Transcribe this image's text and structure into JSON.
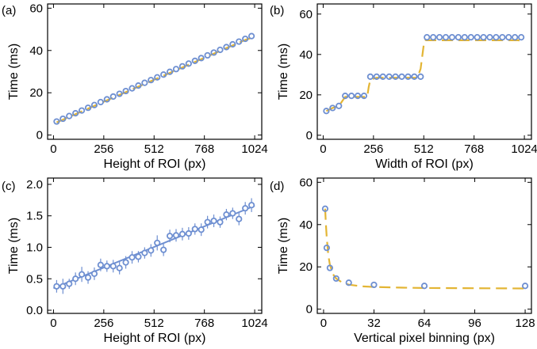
{
  "figure": {
    "background": "#ffffff"
  },
  "colors": {
    "measured": "#6e8fd1",
    "model": "#e3b534",
    "fit": "#6e8fd1"
  },
  "chart_data": [
    {
      "id": "a",
      "panel_label": "(a)",
      "type": "scatter",
      "xlabel": "Height of ROI (px)",
      "ylabel": "Time (ms)",
      "xlim": [
        -30,
        1060
      ],
      "ylim": [
        -2,
        62
      ],
      "xticks": [
        0,
        256,
        512,
        768,
        1024
      ],
      "yticks": [
        0,
        20,
        40,
        60
      ],
      "series": [
        {
          "kind": "dashed-line",
          "points": [
            [
              16,
              6.0
            ],
            [
              48,
              7.3
            ],
            [
              80,
              8.6
            ],
            [
              112,
              9.9
            ],
            [
              144,
              11.2
            ],
            [
              176,
              12.5
            ],
            [
              208,
              13.8
            ],
            [
              240,
              15.1
            ],
            [
              272,
              16.4
            ],
            [
              304,
              17.7
            ],
            [
              336,
              19.0
            ],
            [
              368,
              20.3
            ],
            [
              400,
              21.6
            ],
            [
              432,
              22.9
            ],
            [
              464,
              24.2
            ],
            [
              496,
              25.5
            ],
            [
              528,
              26.8
            ],
            [
              560,
              28.1
            ],
            [
              592,
              29.4
            ],
            [
              624,
              30.7
            ],
            [
              656,
              32.0
            ],
            [
              688,
              33.3
            ],
            [
              720,
              34.6
            ],
            [
              752,
              35.9
            ],
            [
              784,
              37.2
            ],
            [
              816,
              38.5
            ],
            [
              848,
              39.8
            ],
            [
              880,
              41.1
            ],
            [
              912,
              42.4
            ],
            [
              944,
              43.7
            ],
            [
              976,
              45.0
            ],
            [
              1008,
              46.0
            ],
            [
              1024,
              46.5
            ]
          ]
        },
        {
          "kind": "markers",
          "points": [
            [
              16,
              6.4
            ],
            [
              48,
              7.7
            ],
            [
              80,
              9.0
            ],
            [
              112,
              10.3
            ],
            [
              144,
              11.6
            ],
            [
              176,
              12.9
            ],
            [
              208,
              14.2
            ],
            [
              240,
              15.6
            ],
            [
              272,
              16.9
            ],
            [
              304,
              18.2
            ],
            [
              336,
              19.5
            ],
            [
              368,
              20.8
            ],
            [
              400,
              22.1
            ],
            [
              432,
              23.4
            ],
            [
              464,
              24.7
            ],
            [
              496,
              26.0
            ],
            [
              528,
              27.3
            ],
            [
              560,
              28.6
            ],
            [
              592,
              29.9
            ],
            [
              624,
              31.2
            ],
            [
              656,
              32.5
            ],
            [
              688,
              33.8
            ],
            [
              720,
              35.1
            ],
            [
              752,
              36.4
            ],
            [
              784,
              37.7
            ],
            [
              816,
              39.0
            ],
            [
              848,
              40.3
            ],
            [
              880,
              41.6
            ],
            [
              912,
              42.9
            ],
            [
              944,
              44.2
            ],
            [
              976,
              45.5
            ],
            [
              1008,
              46.8
            ]
          ]
        }
      ]
    },
    {
      "id": "b",
      "panel_label": "(b)",
      "type": "scatter",
      "xlabel": "Width of ROI (px)",
      "ylabel": "Time (ms)",
      "xlim": [
        -30,
        1060
      ],
      "ylim": [
        -2,
        65
      ],
      "xticks": [
        0,
        256,
        512,
        768,
        1024
      ],
      "yticks": [
        0,
        20,
        40,
        60
      ],
      "series": [
        {
          "kind": "dashed-line",
          "points": [
            [
              16,
              12.0
            ],
            [
              48,
              13.5
            ],
            [
              80,
              14.5
            ],
            [
              112,
              19.0
            ],
            [
              144,
              19.0
            ],
            [
              176,
              19.0
            ],
            [
              208,
              19.0
            ],
            [
              224,
              19.0
            ],
            [
              232,
              24.0
            ],
            [
              240,
              27.5
            ],
            [
              272,
              28.5
            ],
            [
              304,
              28.5
            ],
            [
              336,
              28.5
            ],
            [
              368,
              28.5
            ],
            [
              400,
              28.5
            ],
            [
              432,
              28.5
            ],
            [
              464,
              28.5
            ],
            [
              480,
              28.5
            ],
            [
              496,
              33.0
            ],
            [
              512,
              45.0
            ],
            [
              520,
              47.0
            ],
            [
              544,
              47.0
            ],
            [
              576,
              47.0
            ],
            [
              608,
              47.0
            ],
            [
              640,
              47.0
            ],
            [
              672,
              47.0
            ],
            [
              704,
              47.0
            ],
            [
              736,
              47.0
            ],
            [
              768,
              47.0
            ],
            [
              800,
              47.0
            ],
            [
              832,
              47.0
            ],
            [
              864,
              47.0
            ],
            [
              896,
              47.0
            ],
            [
              928,
              47.0
            ],
            [
              960,
              47.0
            ],
            [
              992,
              47.0
            ],
            [
              1024,
              46.5
            ]
          ]
        },
        {
          "kind": "markers",
          "points": [
            [
              16,
              12.0
            ],
            [
              48,
              13.5
            ],
            [
              80,
              14.5
            ],
            [
              112,
              19.5
            ],
            [
              144,
              19.5
            ],
            [
              176,
              19.5
            ],
            [
              208,
              19.5
            ],
            [
              240,
              29.0
            ],
            [
              272,
              29.0
            ],
            [
              304,
              29.0
            ],
            [
              336,
              29.0
            ],
            [
              368,
              29.0
            ],
            [
              400,
              29.0
            ],
            [
              432,
              29.0
            ],
            [
              464,
              29.0
            ],
            [
              496,
              29.0
            ],
            [
              528,
              48.5
            ],
            [
              560,
              48.5
            ],
            [
              592,
              48.5
            ],
            [
              624,
              48.5
            ],
            [
              656,
              48.5
            ],
            [
              688,
              48.5
            ],
            [
              720,
              48.5
            ],
            [
              752,
              48.5
            ],
            [
              784,
              48.5
            ],
            [
              816,
              48.5
            ],
            [
              848,
              48.5
            ],
            [
              880,
              48.5
            ],
            [
              912,
              48.5
            ],
            [
              944,
              48.5
            ],
            [
              976,
              48.5
            ],
            [
              1008,
              48.5
            ]
          ]
        }
      ]
    },
    {
      "id": "c",
      "panel_label": "(c)",
      "type": "scatter",
      "xlabel": "Height of ROI (px)",
      "ylabel": "Time (ms)",
      "xlim": [
        -30,
        1060
      ],
      "ylim": [
        -0.05,
        2.1
      ],
      "xticks": [
        0,
        256,
        512,
        768,
        1024
      ],
      "yticks": [
        0.0,
        0.5,
        1.0,
        1.5,
        2.0
      ],
      "series": [
        {
          "kind": "fit-line",
          "points": [
            [
              0,
              0.35
            ],
            [
              1024,
              1.66
            ]
          ]
        },
        {
          "kind": "markers-errorbars",
          "points": [
            [
              16,
              0.38,
              0.1
            ],
            [
              48,
              0.38,
              0.12
            ],
            [
              80,
              0.42,
              0.08
            ],
            [
              112,
              0.5,
              0.1
            ],
            [
              144,
              0.57,
              0.12
            ],
            [
              176,
              0.52,
              0.1
            ],
            [
              208,
              0.58,
              0.1
            ],
            [
              240,
              0.72,
              0.1
            ],
            [
              272,
              0.7,
              0.09
            ],
            [
              304,
              0.7,
              0.1
            ],
            [
              336,
              0.67,
              0.1
            ],
            [
              368,
              0.76,
              0.1
            ],
            [
              400,
              0.84,
              0.1
            ],
            [
              432,
              0.85,
              0.09
            ],
            [
              464,
              0.91,
              0.09
            ],
            [
              496,
              0.95,
              0.1
            ],
            [
              528,
              1.07,
              0.12
            ],
            [
              560,
              0.96,
              0.1
            ],
            [
              592,
              1.18,
              0.1
            ],
            [
              624,
              1.19,
              0.1
            ],
            [
              656,
              1.21,
              0.1
            ],
            [
              688,
              1.22,
              0.1
            ],
            [
              720,
              1.29,
              0.09
            ],
            [
              752,
              1.28,
              0.1
            ],
            [
              784,
              1.4,
              0.1
            ],
            [
              816,
              1.42,
              0.1
            ],
            [
              848,
              1.4,
              0.09
            ],
            [
              880,
              1.52,
              0.09
            ],
            [
              912,
              1.54,
              0.09
            ],
            [
              944,
              1.45,
              0.1
            ],
            [
              976,
              1.62,
              0.1
            ],
            [
              1008,
              1.67,
              0.11
            ]
          ]
        }
      ]
    },
    {
      "id": "d",
      "panel_label": "(d)",
      "type": "scatter",
      "xlabel": "Vertical pixel binning (px)",
      "ylabel": "Time (ms)",
      "xlim": [
        -4,
        132
      ],
      "ylim": [
        -2,
        62
      ],
      "xticks": [
        0,
        32,
        64,
        96,
        128
      ],
      "yticks": [
        0,
        20,
        40,
        60
      ],
      "series": [
        {
          "kind": "dashed-line",
          "points": [
            [
              1,
              47.5
            ],
            [
              1.5,
              40.0
            ],
            [
              2,
              34.0
            ],
            [
              3,
              25.5
            ],
            [
              4,
              21.0
            ],
            [
              6,
              16.5
            ],
            [
              8,
              14.5
            ],
            [
              12,
              12.5
            ],
            [
              16,
              11.6
            ],
            [
              24,
              10.8
            ],
            [
              32,
              10.5
            ],
            [
              48,
              10.2
            ],
            [
              64,
              10.0
            ],
            [
              96,
              9.9
            ],
            [
              128,
              9.8
            ]
          ]
        },
        {
          "kind": "markers",
          "points": [
            [
              1,
              47.5
            ],
            [
              2,
              29.0
            ],
            [
              4,
              19.5
            ],
            [
              8,
              14.5
            ],
            [
              16,
              12.5
            ],
            [
              32,
              11.5
            ],
            [
              64,
              11.0
            ],
            [
              128,
              11.0
            ]
          ]
        }
      ]
    }
  ]
}
